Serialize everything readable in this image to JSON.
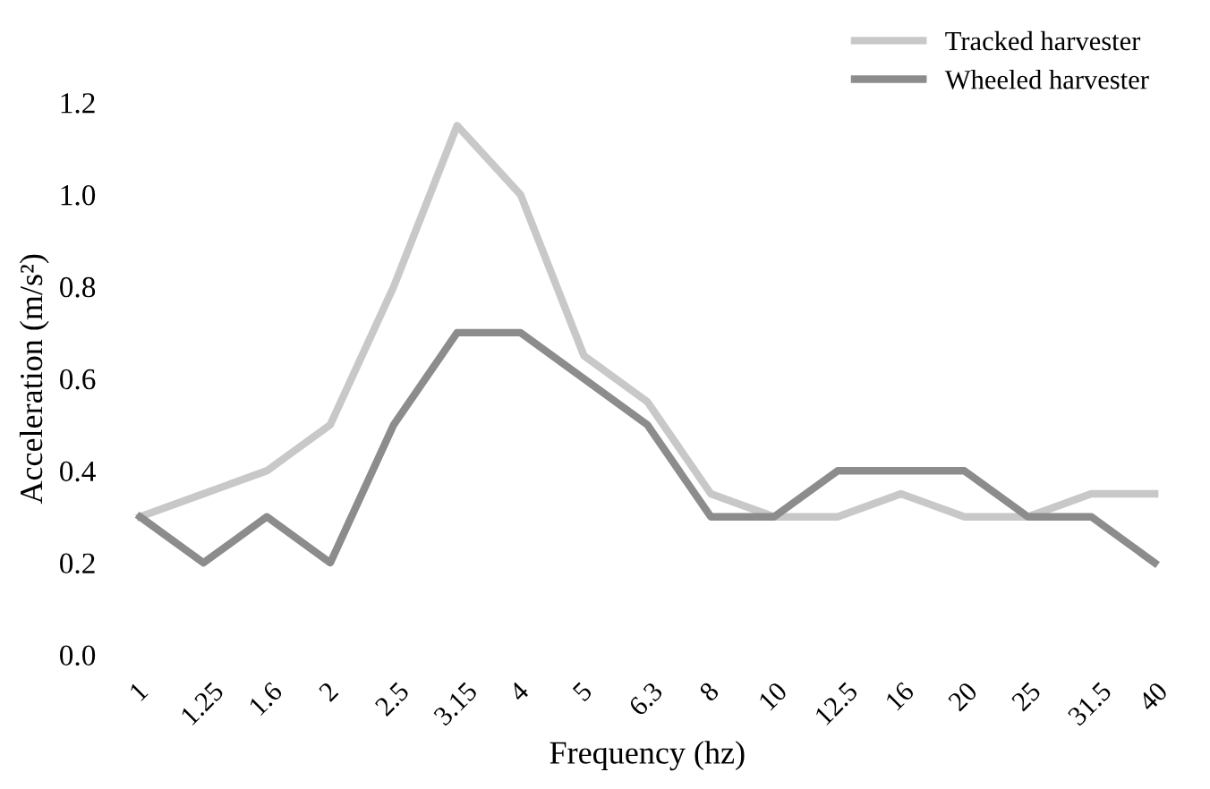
{
  "chart_data": {
    "type": "line",
    "xlabel": "Frequency (hz)",
    "ylabel": "Acceleration (m/s²)",
    "categories": [
      "1",
      "1.25",
      "1.6",
      "2",
      "2.5",
      "3.15",
      "4",
      "5",
      "6.3",
      "8",
      "10",
      "12.5",
      "16",
      "20",
      "25",
      "31.5",
      "40"
    ],
    "series": [
      {
        "name": "Tracked harvester",
        "color": "#c8c8c8",
        "values": [
          0.3,
          0.35,
          0.4,
          0.5,
          0.8,
          1.15,
          1.0,
          0.65,
          0.55,
          0.35,
          0.3,
          0.3,
          0.35,
          0.3,
          0.3,
          0.35,
          0.35
        ]
      },
      {
        "name": "Wheeled harvester",
        "color": "#8c8c8c",
        "values": [
          0.3,
          0.2,
          0.3,
          0.2,
          0.5,
          0.7,
          0.7,
          0.6,
          0.5,
          0.3,
          0.3,
          0.4,
          0.4,
          0.4,
          0.3,
          0.3,
          0.2
        ]
      }
    ],
    "ylim": [
      0,
      1.2
    ],
    "yticks": [
      {
        "value": 0,
        "label": "0.0"
      },
      {
        "value": 0.2,
        "label": "0.2"
      },
      {
        "value": 0.4,
        "label": "0.4"
      },
      {
        "value": 0.6,
        "label": "0.6"
      },
      {
        "value": 0.8,
        "label": "0.8"
      },
      {
        "value": 1.0,
        "label": "1.0"
      },
      {
        "value": 1.2,
        "label": "1.2"
      }
    ],
    "grid": false,
    "legend": "top right",
    "marker": "none",
    "line_style": "solid"
  }
}
